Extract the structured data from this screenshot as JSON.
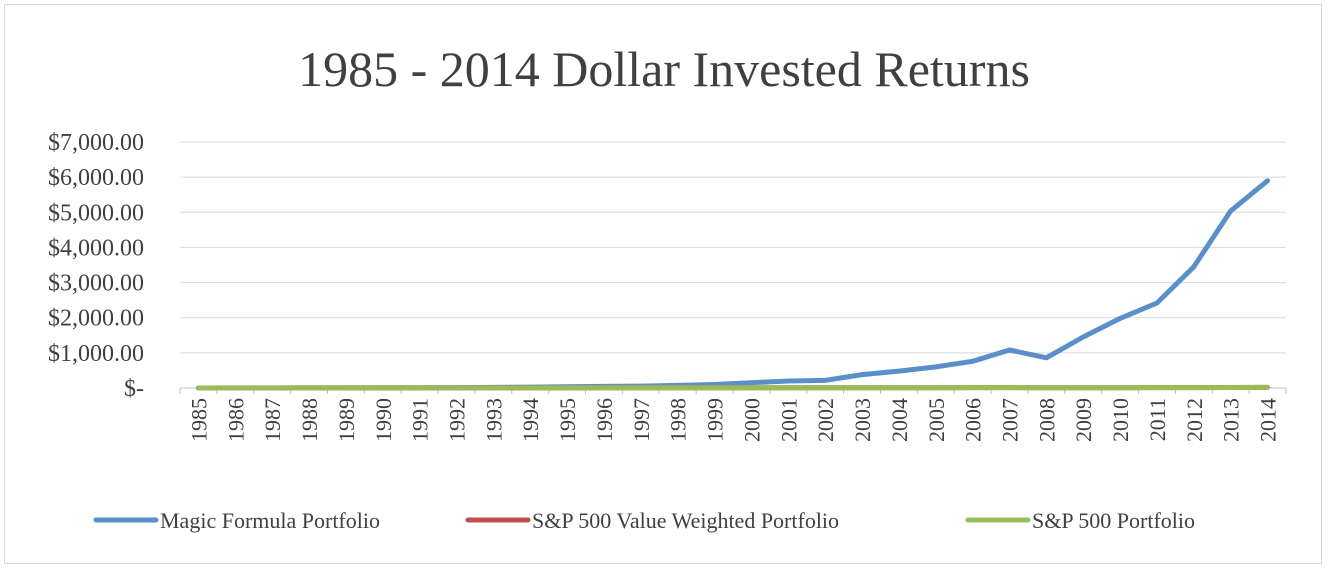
{
  "chart_data": {
    "type": "line",
    "title": "1985 - 2014 Dollar Invested Returns",
    "xlabel": "",
    "ylabel": "",
    "ylim": [
      0,
      7000
    ],
    "yticks": [
      0,
      1000,
      2000,
      3000,
      4000,
      5000,
      6000,
      7000
    ],
    "ytick_labels": [
      "$-",
      "$1,000.00",
      "$2,000.00",
      "$3,000.00",
      "$4,000.00",
      "$5,000.00",
      "$6,000.00",
      "$7,000.00"
    ],
    "grid": true,
    "legend_position": "bottom",
    "x": [
      "1985",
      "1986",
      "1987",
      "1988",
      "1989",
      "1990",
      "1991",
      "1992",
      "1993",
      "1994",
      "1995",
      "1996",
      "1997",
      "1998",
      "1999",
      "2000",
      "2001",
      "2002",
      "2003",
      "2004",
      "2005",
      "2006",
      "2007",
      "2008",
      "2009",
      "2010",
      "2011",
      "2012",
      "2013",
      "2014"
    ],
    "series": [
      {
        "name": "Magic Formula Portfolio",
        "color": "#5b8fc9",
        "values": [
          1,
          1.5,
          2,
          3,
          4,
          5,
          8,
          12,
          18,
          25,
          35,
          45,
          55,
          75,
          100,
          150,
          200,
          215,
          380,
          480,
          600,
          760,
          1080,
          860,
          1450,
          1980,
          2420,
          3450,
          5040,
          5900
        ]
      },
      {
        "name": "S&P 500 Value Weighted Portfolio",
        "color": "#c0504d",
        "values": [
          1,
          1.2,
          1.3,
          1.5,
          1.9,
          1.8,
          2.3,
          2.5,
          2.7,
          2.8,
          3.8,
          4.6,
          6.1,
          7.8,
          9.4,
          8.6,
          7.6,
          5.9,
          7.6,
          8.4,
          8.8,
          10.2,
          10.7,
          6.8,
          8.6,
          9.9,
          10.1,
          11.7,
          15.5,
          17.6
        ]
      },
      {
        "name": "S&P 500 Portfolio",
        "color": "#9bbb59",
        "values": [
          1,
          1.2,
          1.3,
          1.5,
          1.9,
          1.8,
          2.3,
          2.5,
          2.7,
          2.8,
          3.8,
          4.6,
          6.1,
          7.8,
          9.4,
          8.6,
          7.6,
          5.9,
          7.6,
          8.4,
          8.8,
          10.2,
          10.7,
          6.8,
          8.6,
          9.9,
          10.1,
          11.7,
          15.5,
          17.6
        ]
      }
    ]
  }
}
